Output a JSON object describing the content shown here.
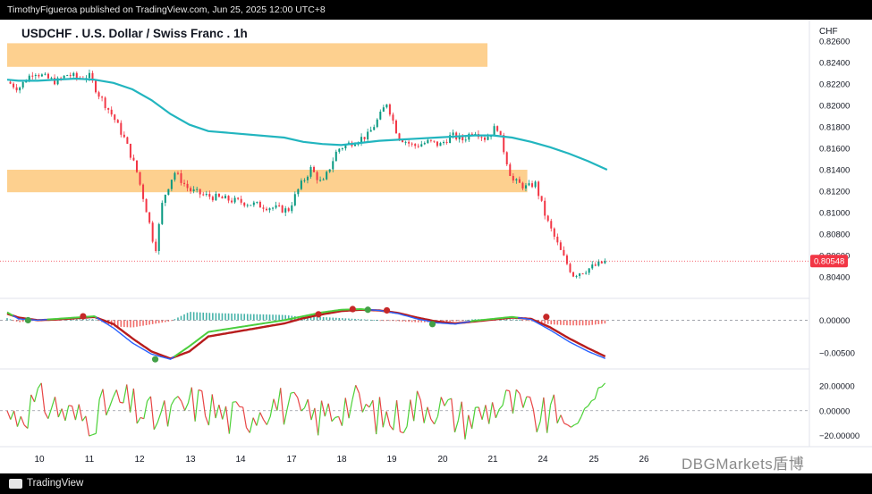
{
  "header": {
    "published_by": "TimothyFigueroa published on TradingView.com, Jun 25, 2025 12:00 UTC+8"
  },
  "chart": {
    "title": "USDCHF . U.S. Dollar / Swiss Franc . 1h",
    "currency": "CHF",
    "last_price_label": "0.80548"
  },
  "colors": {
    "up": "#089981",
    "down": "#f23645",
    "ma": "#22b5bf",
    "zone": "#fdd08f",
    "macd_line": "#2962ff",
    "signal_line": "#b71c1c",
    "osc_up": "#4cd137",
    "osc_down": "#e84545"
  },
  "footer": {
    "brand": "TradingView",
    "watermark": "DBGMarkets盾博"
  },
  "chart_data": {
    "type": "line",
    "x_tick_labels": [
      "10",
      "11",
      "12",
      "13",
      "14",
      "17",
      "18",
      "19",
      "20",
      "21",
      "24",
      "25",
      "26"
    ],
    "price_axis": {
      "tick_labels": [
        "0.82600",
        "0.82400",
        "0.82200",
        "0.82000",
        "0.81800",
        "0.81600",
        "0.81400",
        "0.81200",
        "0.81000",
        "0.80800",
        "0.80600",
        "0.80400"
      ],
      "ylim": [
        0.8025,
        0.8265
      ]
    },
    "price_series_approx": {
      "x": [
        9.7,
        10.0,
        10.2,
        10.4,
        10.7,
        11.0,
        11.3,
        11.6,
        11.85,
        12.1,
        12.5,
        12.8,
        13.1,
        13.4,
        13.6,
        13.8,
        14.1,
        14.5,
        14.9,
        17.1,
        17.4,
        17.7,
        18.0,
        18.4,
        18.8,
        19.2,
        19.5,
        19.7,
        20.0,
        20.4,
        20.8,
        21.1,
        21.4,
        21.7,
        22.0,
        22.3,
        22.6,
        23.0,
        23.4,
        23.6,
        23.9,
        24.3,
        24.6,
        24.9,
        25.1,
        25.3,
        25.5
      ],
      "close": [
        0.8222,
        0.8216,
        0.8224,
        0.8232,
        0.8226,
        0.8222,
        0.8229,
        0.8225,
        0.8228,
        0.8211,
        0.8189,
        0.8168,
        0.814,
        0.8098,
        0.8064,
        0.8112,
        0.8138,
        0.8121,
        0.8116,
        0.8102,
        0.8124,
        0.8141,
        0.8126,
        0.8159,
        0.8166,
        0.8172,
        0.8189,
        0.8203,
        0.8171,
        0.8162,
        0.8166,
        0.8163,
        0.8172,
        0.8168,
        0.8177,
        0.8169,
        0.8181,
        0.813,
        0.8123,
        0.8128,
        0.8094,
        0.8062,
        0.8042,
        0.8046,
        0.8049,
        0.8052,
        0.80548
      ]
    },
    "moving_average_approx": {
      "x": [
        9.7,
        10.0,
        10.5,
        11.0,
        11.5,
        12.0,
        12.5,
        13.0,
        13.5,
        14.0,
        14.5,
        15.0,
        17.0,
        17.5,
        18.0,
        18.5,
        19.0,
        19.5,
        20.0,
        20.5,
        21.0,
        21.5,
        22.0,
        22.5,
        23.0,
        23.5,
        24.0,
        24.5,
        25.0,
        25.5
      ],
      "y": [
        0.8224,
        0.8223,
        0.8223,
        0.8224,
        0.8225,
        0.8224,
        0.8221,
        0.8215,
        0.8205,
        0.8192,
        0.8182,
        0.8176,
        0.817,
        0.8166,
        0.8164,
        0.8163,
        0.8165,
        0.8167,
        0.8168,
        0.8169,
        0.817,
        0.8171,
        0.8172,
        0.8172,
        0.817,
        0.8166,
        0.8161,
        0.8155,
        0.8148,
        0.814
      ]
    },
    "supply_zones": [
      {
        "x_from": 9.7,
        "x_to": 22.35,
        "y_from": 0.8236,
        "y_to": 0.8258
      },
      {
        "x_from": 9.7,
        "x_to": 23.4,
        "y_from": 0.8119,
        "y_to": 0.814
      }
    ],
    "macd_axis": {
      "tick_labels": [
        "0.00000",
        "-0.00500"
      ],
      "ylim": [
        -0.0068,
        0.0028
      ]
    },
    "macd_series_approx": {
      "x": [
        9.7,
        10.0,
        10.5,
        11.0,
        11.5,
        12.0,
        12.5,
        13.0,
        13.5,
        14.0,
        14.5,
        15.0,
        17.0,
        17.5,
        18.0,
        18.5,
        19.0,
        19.5,
        20.0,
        20.5,
        21.0,
        21.5,
        22.0,
        22.5,
        23.0,
        23.5,
        24.0,
        24.5,
        25.0,
        25.5
      ],
      "macd": [
        0.0012,
        0.0002,
        0.0,
        0.0002,
        0.0004,
        0.0006,
        -0.0012,
        -0.0035,
        -0.0052,
        -0.006,
        -0.004,
        -0.0018,
        0.0,
        0.0006,
        0.0012,
        0.0016,
        0.0017,
        0.0015,
        0.001,
        0.0002,
        -0.0004,
        -0.0006,
        -0.0001,
        0.0002,
        0.0005,
        0.0001,
        -0.0015,
        -0.0033,
        -0.0048,
        -0.006
      ],
      "signal": [
        0.001,
        0.0004,
        0.0,
        0.0001,
        0.0003,
        0.0005,
        -0.0006,
        -0.0028,
        -0.0048,
        -0.0059,
        -0.0048,
        -0.0025,
        -0.0005,
        0.0003,
        0.0009,
        0.0014,
        0.0016,
        0.0015,
        0.0011,
        0.0004,
        -0.0002,
        -0.0005,
        -0.0002,
        0.0001,
        0.0004,
        0.0002,
        -0.0011,
        -0.0028,
        -0.0043,
        -0.0057
      ]
    },
    "macd_cross_points": [
      {
        "x": 10.25,
        "y": 0.0,
        "direction": "up"
      },
      {
        "x": 11.7,
        "y": 0.0006,
        "direction": "down"
      },
      {
        "x": 13.6,
        "y": -0.006,
        "direction": "up"
      },
      {
        "x": 17.9,
        "y": 0.0009,
        "direction": "down"
      },
      {
        "x": 18.8,
        "y": 0.0017,
        "direction": "down"
      },
      {
        "x": 19.2,
        "y": 0.0016,
        "direction": "up"
      },
      {
        "x": 19.7,
        "y": 0.0015,
        "direction": "down"
      },
      {
        "x": 20.9,
        "y": -0.0006,
        "direction": "up"
      },
      {
        "x": 23.9,
        "y": 0.0005,
        "direction": "down"
      }
    ],
    "oscillator_axis": {
      "tick_labels": [
        "20.00000",
        "0.00000",
        "-20.00000"
      ],
      "ylim": [
        -26,
        30
      ]
    }
  }
}
